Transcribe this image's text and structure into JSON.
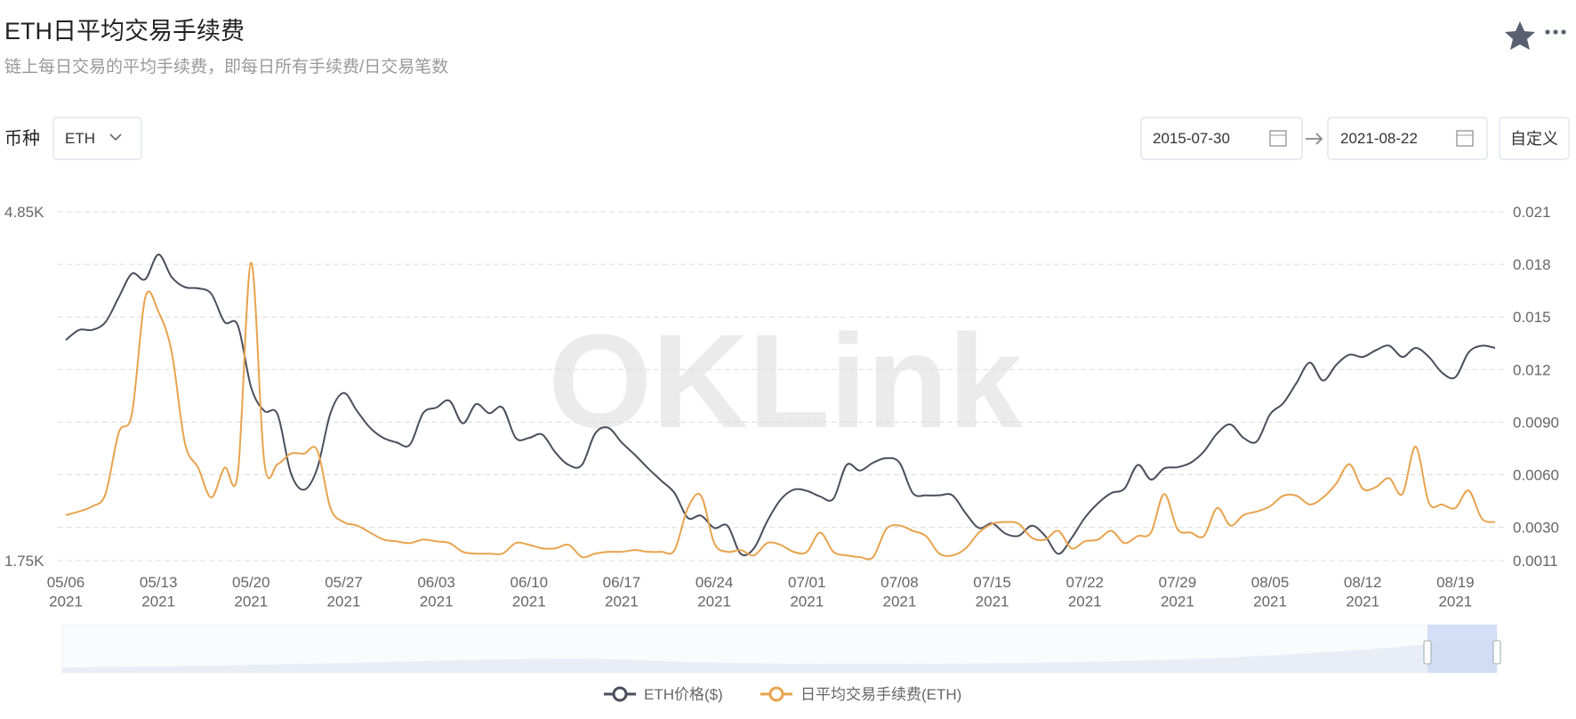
{
  "header": {
    "title": "ETH日平均交易手续费",
    "subtitle": "链上每日交易的平均手续费，即每日所有手续费/日交易笔数"
  },
  "filters": {
    "coin_label": "币种",
    "coin": "ETH",
    "start_date": "2015-07-30",
    "end_date": "2021-08-22",
    "custom": "自定义"
  },
  "watermark": "OKLink",
  "chart_data": {
    "type": "line",
    "categories": [
      "05/06\n2021",
      null,
      null,
      null,
      null,
      null,
      null,
      "05/13\n2021",
      null,
      null,
      null,
      null,
      null,
      null,
      "05/20\n2021",
      null,
      null,
      null,
      null,
      null,
      null,
      "05/27\n2021",
      null,
      null,
      null,
      null,
      null,
      null,
      "06/03\n2021",
      null,
      null,
      null,
      null,
      null,
      null,
      "06/10\n2021",
      null,
      null,
      null,
      null,
      null,
      null,
      "06/17\n2021",
      null,
      null,
      null,
      null,
      null,
      null,
      "06/24\n2021",
      null,
      null,
      null,
      null,
      null,
      null,
      "07/01\n2021",
      null,
      null,
      null,
      null,
      null,
      null,
      "07/08\n2021",
      null,
      null,
      null,
      null,
      null,
      null,
      "07/15\n2021",
      null,
      null,
      null,
      null,
      null,
      null,
      "07/22\n2021",
      null,
      null,
      null,
      null,
      null,
      null,
      "07/29\n2021",
      null,
      null,
      null,
      null,
      null,
      null,
      "08/05\n2021",
      null,
      null,
      null,
      null,
      null,
      null,
      "08/12\n2021",
      null,
      null,
      null,
      null,
      null,
      null,
      "08/19\n2021",
      null,
      null,
      null
    ],
    "series": [
      {
        "name": "ETH价格($)",
        "color": "#4a4e5c",
        "axis": "y",
        "values": [
          3710,
          3800,
          3800,
          3870,
          4090,
          4300,
          4250,
          4470,
          4270,
          4180,
          4170,
          4120,
          3870,
          3840,
          3290,
          3080,
          3050,
          2530,
          2380,
          2570,
          3060,
          3240,
          3080,
          2930,
          2840,
          2800,
          2780,
          3060,
          3110,
          3170,
          2970,
          3140,
          3060,
          3110,
          2840,
          2840,
          2870,
          2710,
          2600,
          2600,
          2880,
          2930,
          2800,
          2690,
          2570,
          2460,
          2350,
          2130,
          2150,
          2040,
          2060,
          1810,
          1860,
          2100,
          2290,
          2380,
          2370,
          2320,
          2300,
          2600,
          2550,
          2620,
          2660,
          2620,
          2350,
          2330,
          2330,
          2330,
          2170,
          2040,
          2080,
          1990,
          1970,
          2060,
          1970,
          1810,
          1950,
          2130,
          2260,
          2350,
          2390,
          2600,
          2470,
          2570,
          2580,
          2620,
          2720,
          2880,
          2960,
          2840,
          2810,
          3050,
          3150,
          3330,
          3510,
          3350,
          3490,
          3580,
          3560,
          3620,
          3660,
          3560,
          3640,
          3560,
          3420,
          3380,
          3600,
          3660,
          3640
        ]
      },
      {
        "name": "日平均交易手续费(ETH)",
        "color": "#e8a34d",
        "axis": "y2",
        "values": [
          0.0037,
          0.0039,
          0.0042,
          0.0049,
          0.0084,
          0.0095,
          0.0161,
          0.0153,
          0.013,
          0.0078,
          0.0064,
          0.0047,
          0.0064,
          0.0061,
          0.0181,
          0.0067,
          0.0066,
          0.0072,
          0.0072,
          0.0074,
          0.0041,
          0.0033,
          0.0031,
          0.0027,
          0.0023,
          0.0022,
          0.0021,
          0.0023,
          0.0022,
          0.0021,
          0.0016,
          0.0015,
          0.0015,
          0.0015,
          0.0021,
          0.002,
          0.0018,
          0.0018,
          0.002,
          0.0013,
          0.0015,
          0.0016,
          0.0016,
          0.0017,
          0.0016,
          0.0016,
          0.0017,
          0.0041,
          0.0048,
          0.0021,
          0.0016,
          0.0017,
          0.0014,
          0.0021,
          0.002,
          0.0016,
          0.0016,
          0.0027,
          0.0016,
          0.0014,
          0.0013,
          0.0013,
          0.0029,
          0.0031,
          0.0028,
          0.0025,
          0.0015,
          0.0014,
          0.0018,
          0.0027,
          0.0032,
          0.0033,
          0.0032,
          0.0024,
          0.0023,
          0.0028,
          0.0018,
          0.0022,
          0.0023,
          0.0028,
          0.0021,
          0.0025,
          0.0027,
          0.0049,
          0.0029,
          0.0027,
          0.0025,
          0.0041,
          0.0031,
          0.0037,
          0.0039,
          0.0042,
          0.0048,
          0.0048,
          0.0043,
          0.0047,
          0.0055,
          0.0066,
          0.0052,
          0.0053,
          0.0058,
          0.0049,
          0.0076,
          0.0044,
          0.0043,
          0.0041,
          0.0051,
          0.0035,
          0.0033
        ]
      }
    ],
    "ylim": [
      1750,
      4850
    ],
    "yticks": [
      {
        "value": 1750,
        "label": "1.75K"
      },
      {
        "value": 4850,
        "label": "4.85K"
      }
    ],
    "y2lim": [
      0.0011,
      0.021
    ],
    "y2ticks": [
      0.0011,
      {
        "value": 0.003,
        "label": "0.0030"
      },
      {
        "value": 0.006,
        "label": "0.0060"
      },
      {
        "value": 0.009,
        "label": "0.0090"
      },
      0.012,
      0.015,
      0.018,
      0.021
    ],
    "grid": true,
    "legend": "bottom"
  }
}
